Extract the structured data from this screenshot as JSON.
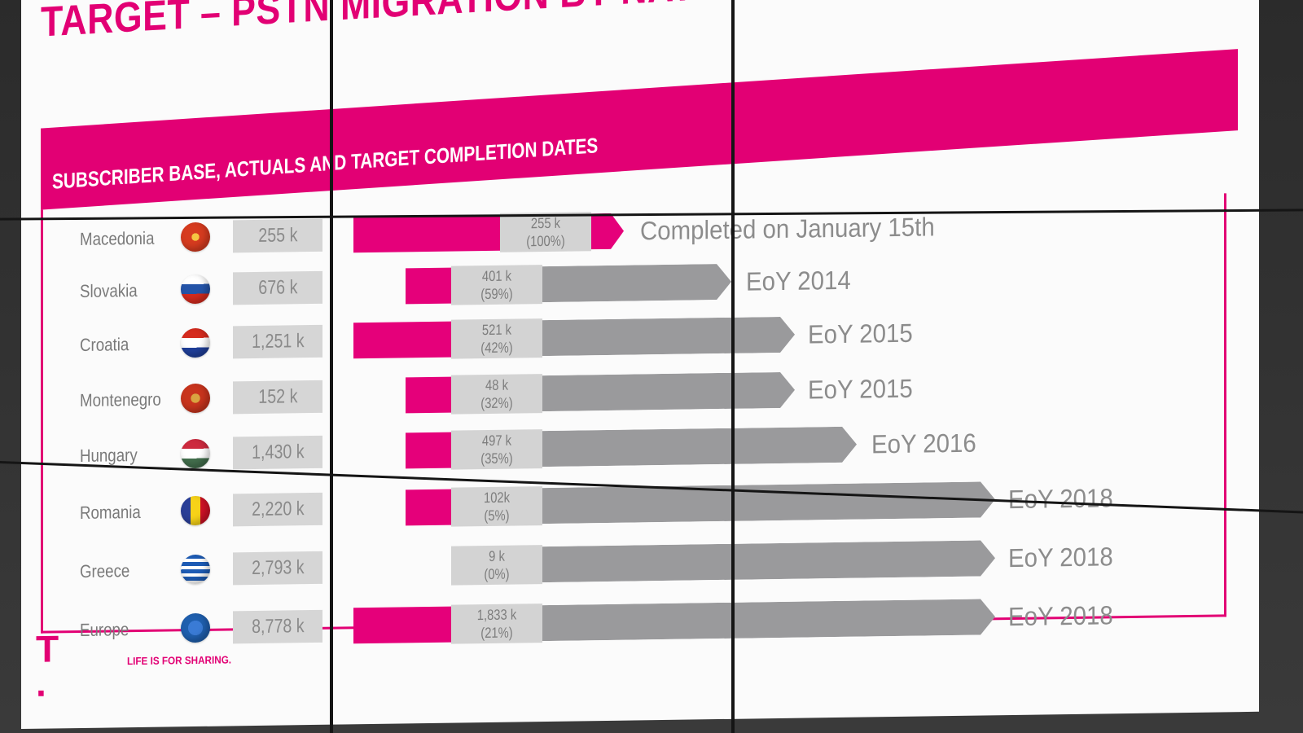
{
  "slide": {
    "title": "TARGET – PSTN MIGRATION BY NATCOS",
    "header_label": "SUBSCRIBER BASE, ACTUALS AND TARGET COMPLETION DATES"
  },
  "colors": {
    "brand": "#e20074",
    "pink_bar": "#e5007a",
    "grey_arrow": "#9a9a9c",
    "grey_box": "#d6d6d6"
  },
  "rows": [
    {
      "country": "Macedonia",
      "flag_icon": "macedonia-flag-icon",
      "base": "255 k",
      "actual": "255 k",
      "share": "(100%)",
      "target": "Completed on January 15th"
    },
    {
      "country": "Slovakia",
      "flag_icon": "slovakia-flag-icon",
      "base": "676 k",
      "actual": "401 k",
      "share": "(59%)",
      "target": "EoY 2014"
    },
    {
      "country": "Croatia",
      "flag_icon": "croatia-flag-icon",
      "base": "1,251 k",
      "actual": "521 k",
      "share": "(42%)",
      "target": "EoY 2015"
    },
    {
      "country": "Montenegro",
      "flag_icon": "montenegro-flag-icon",
      "base": "152 k",
      "actual": "48 k",
      "share": "(32%)",
      "target": "EoY 2015"
    },
    {
      "country": "Hungary",
      "flag_icon": "hungary-flag-icon",
      "base": "1,430 k",
      "actual": "497 k",
      "share": "(35%)",
      "target": "EoY 2016"
    },
    {
      "country": "Romania",
      "flag_icon": "romania-flag-icon",
      "base": "2,220 k",
      "actual": "102k",
      "share": "(5%)",
      "target": "EoY 2018"
    },
    {
      "country": "Greece",
      "flag_icon": "greece-flag-icon",
      "base": "2,793 k",
      "actual": "9 k",
      "share": "(0%)",
      "target": "EoY 2018"
    },
    {
      "country": "Europe",
      "flag_icon": "europe-flag-icon",
      "base": "8,778 k",
      "actual": "1,833 k",
      "share": "(21%)",
      "target": "EoY 2018"
    }
  ],
  "footer": {
    "logo_text": "T · ·",
    "tagline": "LIFE IS FOR SHARING."
  }
}
